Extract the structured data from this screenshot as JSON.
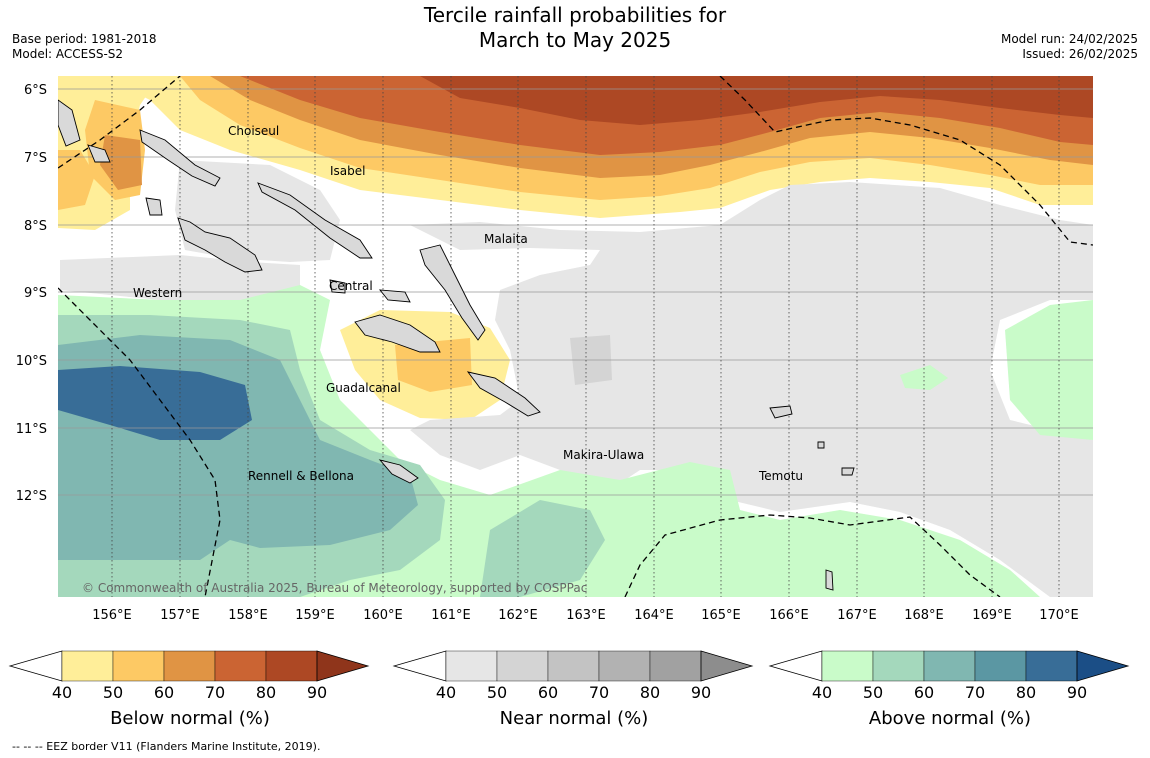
{
  "header": {
    "title_line1": "Tercile rainfall probabilities for",
    "title_line2": "March to May 2025",
    "base_period": "Base period: 1981-2018",
    "model": "Model: ACCESS-S2",
    "model_run": "Model run: 24/02/2025",
    "issued": "Issued: 26/02/2025"
  },
  "map": {
    "lat_labels": [
      "6°S",
      "7°S",
      "8°S",
      "9°S",
      "10°S",
      "11°S",
      "12°S"
    ],
    "lon_labels": [
      "156°E",
      "157°E",
      "158°E",
      "159°E",
      "160°E",
      "161°E",
      "162°E",
      "163°E",
      "164°E",
      "165°E",
      "166°E",
      "167°E",
      "168°E",
      "169°E",
      "170°E"
    ],
    "province_labels": [
      "Choiseul",
      "Isabel",
      "Malaita",
      "Central",
      "Western",
      "Guadalcanal",
      "Makira-Ulawa",
      "Rennell & Bellona",
      "Temotu"
    ],
    "copyright": "© Commonwealth of Australia 2025, Bureau of Meteorology, supported by COSPPac"
  },
  "colorbars": [
    {
      "title": "Below normal (%)",
      "ticks": [
        "40",
        "50",
        "60",
        "70",
        "80",
        "90"
      ],
      "colors": [
        "#ffee99",
        "#fdc964",
        "#e09444",
        "#cb6433",
        "#ad4824",
        "#8f351b"
      ]
    },
    {
      "title": "Near normal (%)",
      "ticks": [
        "40",
        "50",
        "60",
        "70",
        "80",
        "90"
      ],
      "colors": [
        "#e6e6e6",
        "#d4d4d4",
        "#c3c3c3",
        "#b2b2b2",
        "#a1a1a1",
        "#8d8d8d"
      ]
    },
    {
      "title": "Above normal (%)",
      "ticks": [
        "40",
        "50",
        "60",
        "70",
        "80",
        "90"
      ],
      "colors": [
        "#c9fbc9",
        "#a4d8bc",
        "#80b7b1",
        "#5b97a3",
        "#386d97",
        "#1b4e86"
      ]
    }
  ],
  "footer": {
    "legend_note": "--  --  -- EEZ border V11 (Flanders Marine Institute, 2019)."
  }
}
